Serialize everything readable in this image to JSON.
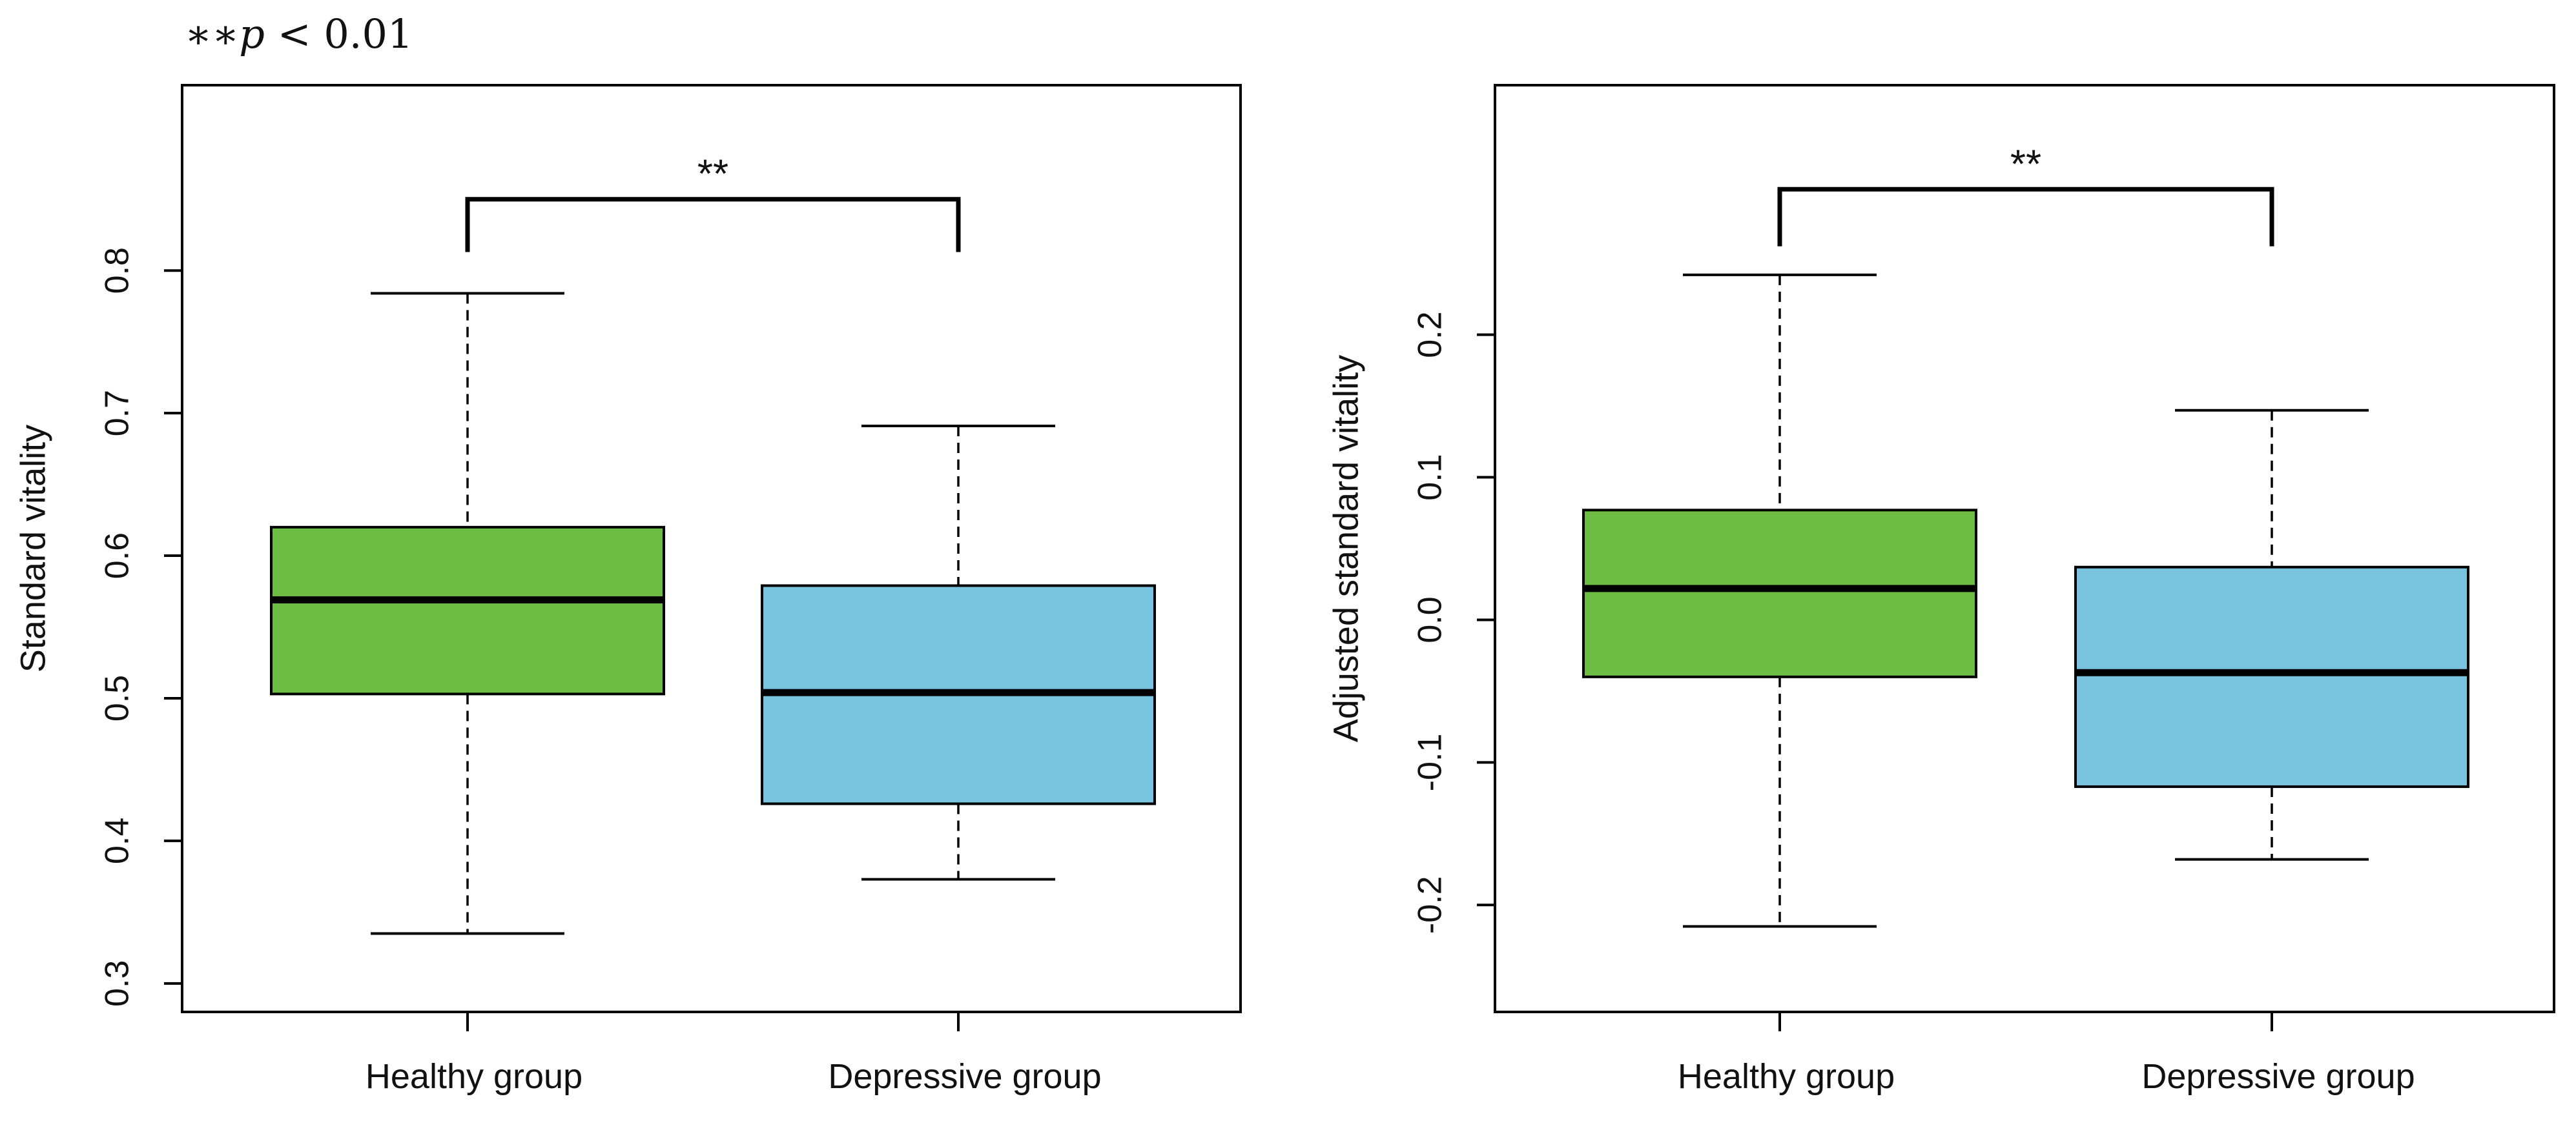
{
  "note": {
    "stars": "∗∗",
    "p_symbol": "p",
    "comparison": "< 0.01"
  },
  "colors": {
    "healthy": "#6dbd45",
    "depressive": "#79c3df",
    "line": "#000000"
  },
  "chart_data": [
    {
      "type": "boxplot",
      "ylabel": "Standard vitality",
      "xlabel": "",
      "ylim": [
        0.28,
        0.93
      ],
      "yticks": [
        0.3,
        0.4,
        0.5,
        0.6,
        0.7,
        0.8
      ],
      "ytick_labels": [
        "0.3",
        "0.4",
        "0.5",
        "0.6",
        "0.7",
        "0.8"
      ],
      "categories": [
        "Healthy group",
        "Depressive group"
      ],
      "boxes": [
        {
          "name": "Healthy group",
          "whisker_low": 0.335,
          "q1": 0.503,
          "median": 0.569,
          "q3": 0.62,
          "whisker_high": 0.784,
          "color": "#6dbd45"
        },
        {
          "name": "Depressive group",
          "whisker_low": 0.373,
          "q1": 0.426,
          "median": 0.504,
          "q3": 0.579,
          "whisker_high": 0.691,
          "color": "#79c3df"
        }
      ],
      "significance": {
        "label": "**",
        "bracket_y": 0.85,
        "bracket_drop": 0.813
      }
    },
    {
      "type": "boxplot",
      "ylabel": "Adjusted standard vitality",
      "xlabel": "",
      "ylim": [
        -0.275,
        0.375
      ],
      "yticks": [
        -0.2,
        -0.1,
        0.0,
        0.1,
        0.2
      ],
      "ytick_labels": [
        "-0.2",
        "-0.1",
        "0.0",
        "0.1",
        "0.2"
      ],
      "categories": [
        "Healthy group",
        "Depressive group"
      ],
      "boxes": [
        {
          "name": "Healthy group",
          "whisker_low": -0.215,
          "q1": -0.04,
          "median": 0.022,
          "q3": 0.077,
          "whisker_high": 0.242,
          "color": "#6dbd45"
        },
        {
          "name": "Depressive group",
          "whisker_low": -0.168,
          "q1": -0.117,
          "median": -0.037,
          "q3": 0.037,
          "whisker_high": 0.147,
          "color": "#79c3df"
        }
      ],
      "significance": {
        "label": "**",
        "bracket_y": 0.302,
        "bracket_drop": 0.262
      }
    }
  ]
}
